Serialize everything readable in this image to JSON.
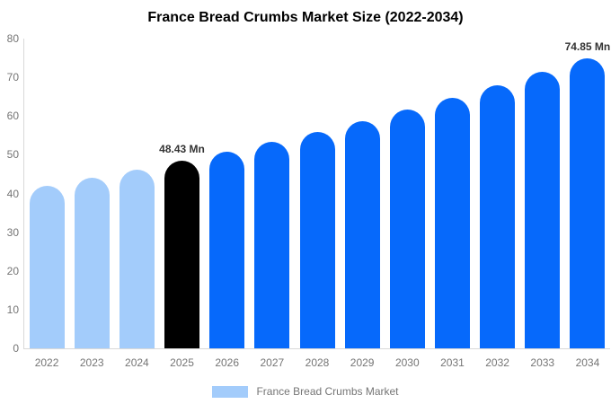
{
  "chart_data": {
    "type": "bar",
    "title": "France Bread Crumbs Market Size (2022-2034)",
    "unit": "Mn",
    "categories": [
      "2022",
      "2023",
      "2024",
      "2025",
      "2026",
      "2027",
      "2028",
      "2029",
      "2030",
      "2031",
      "2032",
      "2033",
      "2034"
    ],
    "values": [
      41.88,
      43.96,
      46.14,
      48.43,
      50.83,
      53.35,
      56.0,
      58.77,
      61.69,
      64.75,
      67.96,
      71.32,
      74.85
    ],
    "bar_colors": [
      "#A3CCFB",
      "#A3CCFB",
      "#A3CCFB",
      "#000000",
      "#0669FB",
      "#0669FB",
      "#0669FB",
      "#0669FB",
      "#0669FB",
      "#0669FB",
      "#0669FB",
      "#0669FB",
      "#0669FB"
    ],
    "annotations": [
      {
        "category": "2025",
        "text": "48.43 Mn"
      },
      {
        "category": "2034",
        "text": "74.85 Mn"
      }
    ],
    "xlabel": "",
    "ylabel": "",
    "ylim": [
      0,
      80
    ],
    "yticks": [
      0,
      10,
      20,
      30,
      40,
      50,
      60,
      70,
      80
    ],
    "grid": false,
    "legend_position": "bottom",
    "series_colors": {
      "historical": "#A3CCFB",
      "base_year": "#000000",
      "forecast": "#0669FB"
    },
    "axis_line_color": "#d9d9d9",
    "tick_label_color": "#757575",
    "annotation_color": "#333333"
  },
  "legend": {
    "label": "France Bread Crumbs Market",
    "swatch_color": "#A3CCFB"
  }
}
